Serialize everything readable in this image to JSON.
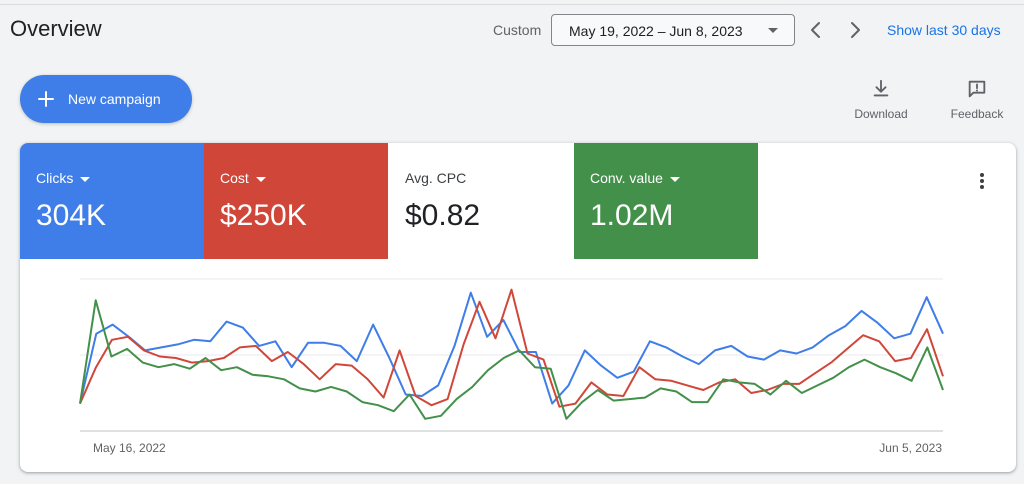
{
  "header": {
    "title": "Overview",
    "custom_label": "Custom",
    "date_range": "May 19, 2022 – Jun 8, 2023",
    "show_last": "Show last 30 days",
    "prev_icon": "chevron-left-icon",
    "next_icon": "chevron-right-icon"
  },
  "actions": {
    "new_campaign": "New campaign",
    "download": "Download",
    "feedback": "Feedback"
  },
  "metrics": [
    {
      "label": "Clicks",
      "value": "304K",
      "color": "#3f7de8",
      "dropdown": true,
      "active": true
    },
    {
      "label": "Cost",
      "value": "$250K",
      "color": "#d0473a",
      "dropdown": true,
      "active": true
    },
    {
      "label": "Avg. CPC",
      "value": "$0.82",
      "color": "#ffffff",
      "dropdown": false,
      "active": false
    },
    {
      "label": "Conv. value",
      "value": "1.02M",
      "color": "#43904a",
      "dropdown": true,
      "active": true
    }
  ],
  "chart_data": {
    "type": "line",
    "x_start_label": "May 16, 2022",
    "x_end_label": "Jun 5, 2023",
    "grid": true,
    "ylim": [
      0,
      100
    ],
    "series": [
      {
        "color": "#3f7de8",
        "values": [
          18,
          64,
          70,
          62,
          53,
          55,
          57,
          60,
          59,
          72,
          68,
          56,
          59,
          42,
          58,
          58,
          56,
          46,
          70,
          48,
          24,
          23,
          30,
          56,
          91,
          62,
          73,
          52,
          52,
          18,
          30,
          53,
          43,
          35,
          39,
          59,
          55,
          49,
          44,
          53,
          56,
          49,
          47,
          53,
          51,
          55,
          63,
          69,
          79,
          71,
          61,
          64,
          88,
          64
        ]
      },
      {
        "color": "#d0473a",
        "values": [
          18,
          42,
          60,
          62,
          53,
          49,
          48,
          45,
          46,
          48,
          55,
          56,
          46,
          52,
          44,
          34,
          44,
          43,
          34,
          22,
          53,
          23,
          17,
          21,
          57,
          85,
          61,
          93,
          51,
          47,
          16,
          18,
          32,
          24,
          23,
          42,
          34,
          33,
          30,
          27,
          32,
          34,
          25,
          27,
          31,
          31,
          38,
          45,
          54,
          63,
          59,
          46,
          48,
          67,
          36
        ]
      },
      {
        "color": "#43904a",
        "values": [
          18,
          86,
          49,
          54,
          45,
          42,
          44,
          41,
          48,
          40,
          42,
          37,
          36,
          34,
          28,
          26,
          29,
          26,
          19,
          17,
          13,
          24,
          8,
          10,
          21,
          29,
          40,
          48,
          53,
          42,
          41,
          8,
          19,
          27,
          20,
          21,
          22,
          28,
          26,
          19,
          19,
          34,
          32,
          31,
          24,
          33,
          25,
          30,
          35,
          42,
          47,
          42,
          38,
          33,
          55,
          27
        ]
      }
    ]
  }
}
